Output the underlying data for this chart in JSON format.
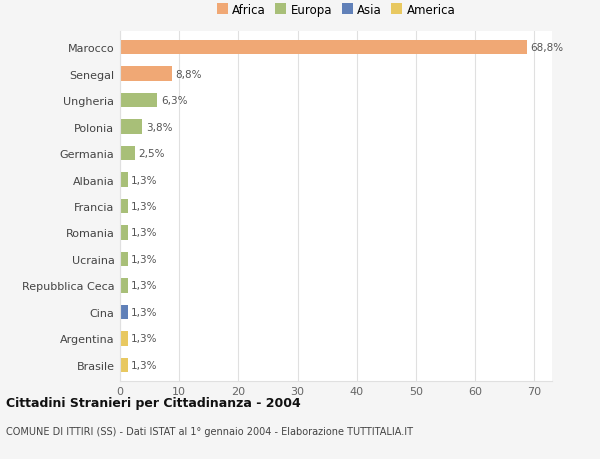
{
  "countries": [
    "Marocco",
    "Senegal",
    "Ungheria",
    "Polonia",
    "Germania",
    "Albania",
    "Francia",
    "Romania",
    "Ucraina",
    "Repubblica Ceca",
    "Cina",
    "Argentina",
    "Brasile"
  ],
  "values": [
    68.8,
    8.8,
    6.3,
    3.8,
    2.5,
    1.3,
    1.3,
    1.3,
    1.3,
    1.3,
    1.3,
    1.3,
    1.3
  ],
  "labels": [
    "68,8%",
    "8,8%",
    "6,3%",
    "3,8%",
    "2,5%",
    "1,3%",
    "1,3%",
    "1,3%",
    "1,3%",
    "1,3%",
    "1,3%",
    "1,3%",
    "1,3%"
  ],
  "colors": [
    "#F0A875",
    "#F0A875",
    "#A8BF78",
    "#A8BF78",
    "#A8BF78",
    "#A8BF78",
    "#A8BF78",
    "#A8BF78",
    "#A8BF78",
    "#A8BF78",
    "#6080B8",
    "#E8C860",
    "#E8C860"
  ],
  "legend_labels": [
    "Africa",
    "Europa",
    "Asia",
    "America"
  ],
  "legend_colors": [
    "#F0A875",
    "#A8BF78",
    "#6080B8",
    "#E8C860"
  ],
  "title": "Cittadini Stranieri per Cittadinanza - 2004",
  "subtitle": "COMUNE DI ITTIRI (SS) - Dati ISTAT al 1° gennaio 2004 - Elaborazione TUTTITALIA.IT",
  "xlim": [
    0,
    73
  ],
  "xticks": [
    0,
    10,
    20,
    30,
    40,
    50,
    60,
    70
  ],
  "background_color": "#f5f5f5",
  "plot_background": "#ffffff",
  "grid_color": "#e0e0e0"
}
